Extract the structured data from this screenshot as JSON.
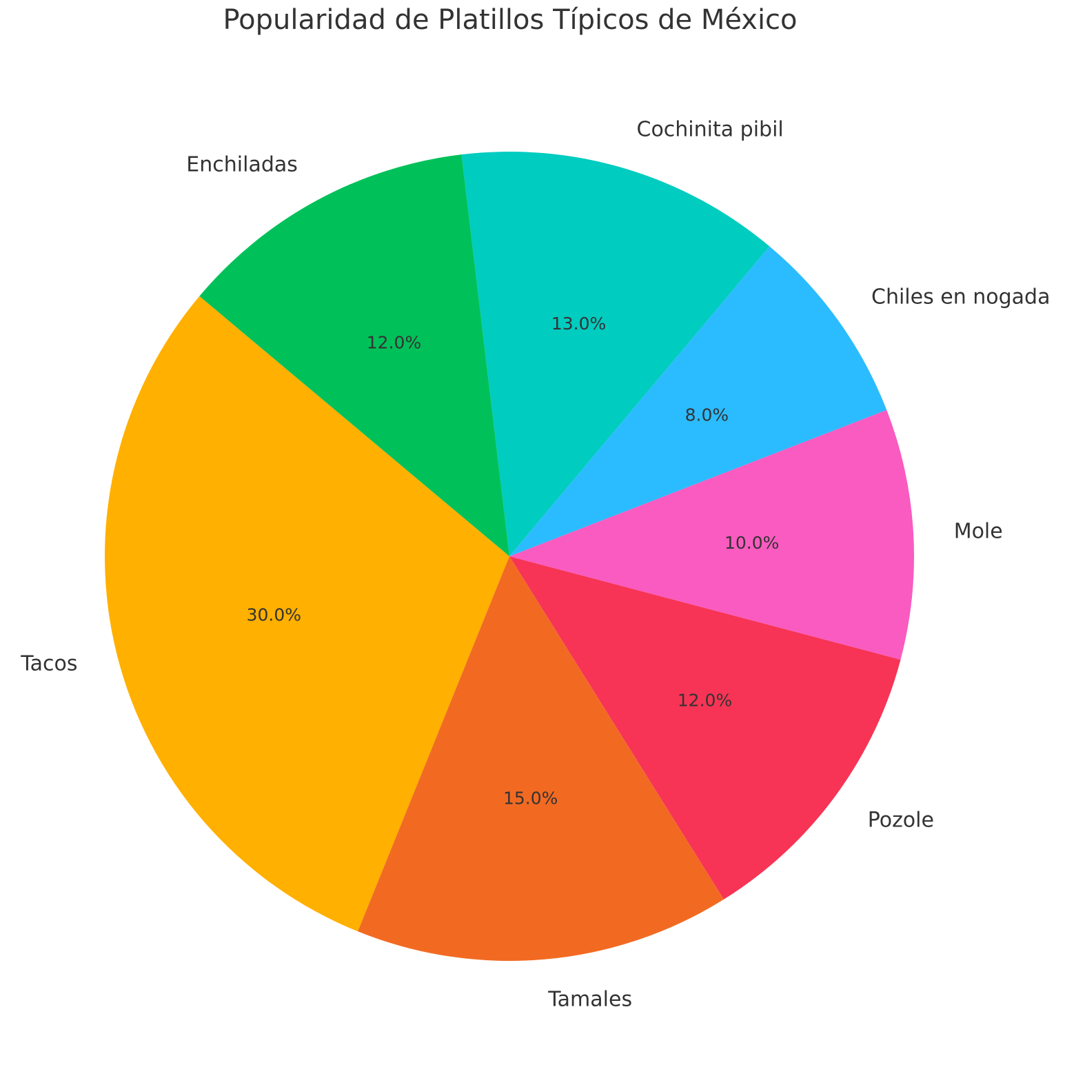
{
  "chart_data": {
    "type": "pie",
    "title": "Popularidad de Platillos Típicos de México",
    "legend": "none",
    "slices": [
      {
        "label": "Tacos",
        "value": 30.0,
        "pct_label": "30.0%",
        "color": "#FFB000"
      },
      {
        "label": "Tamales",
        "value": 15.0,
        "pct_label": "15.0%",
        "color": "#F26A22"
      },
      {
        "label": "Pozole",
        "value": 12.0,
        "pct_label": "12.0%",
        "color": "#F73455"
      },
      {
        "label": "Mole",
        "value": 10.0,
        "pct_label": "10.0%",
        "color": "#F95BC0"
      },
      {
        "label": "Chiles en nogada",
        "value": 8.0,
        "pct_label": "8.0%",
        "color": "#2BBCFF"
      },
      {
        "label": "Cochinita pibil",
        "value": 13.0,
        "pct_label": "13.0%",
        "color": "#00CCC0"
      },
      {
        "label": "Enchiladas",
        "value": 12.0,
        "pct_label": "12.0%",
        "color": "#00C159"
      }
    ]
  }
}
